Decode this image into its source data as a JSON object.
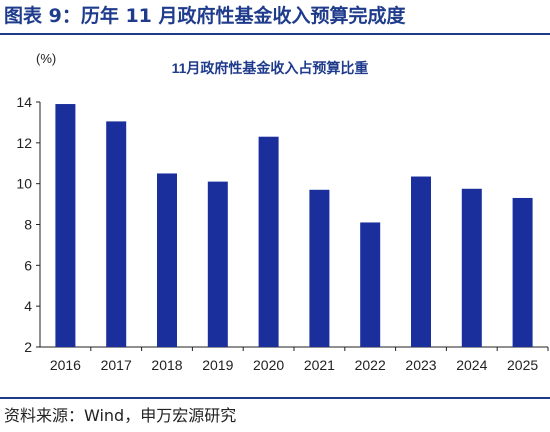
{
  "figure_title": "图表 9：历年 11 月政府性基金收入预算完成度",
  "source_note": "资料来源：Wind，申万宏源研究",
  "colors": {
    "bar": "#1a2f9c",
    "title": "#1f3b8c",
    "axis": "#222222"
  },
  "chart_data": {
    "type": "bar",
    "title": "11月政府性基金收入占预算比重",
    "unit_label": "(%)",
    "xlabel": "",
    "ylabel": "",
    "categories": [
      "2016",
      "2017",
      "2018",
      "2019",
      "2020",
      "2021",
      "2022",
      "2023",
      "2024",
      "2025"
    ],
    "values": [
      13.9,
      13.05,
      10.5,
      10.1,
      12.3,
      9.7,
      8.1,
      10.35,
      9.75,
      9.3
    ],
    "ylim": [
      2,
      14
    ],
    "yticks": [
      2,
      4,
      6,
      8,
      10,
      12,
      14
    ],
    "grid": false,
    "legend": "none"
  }
}
